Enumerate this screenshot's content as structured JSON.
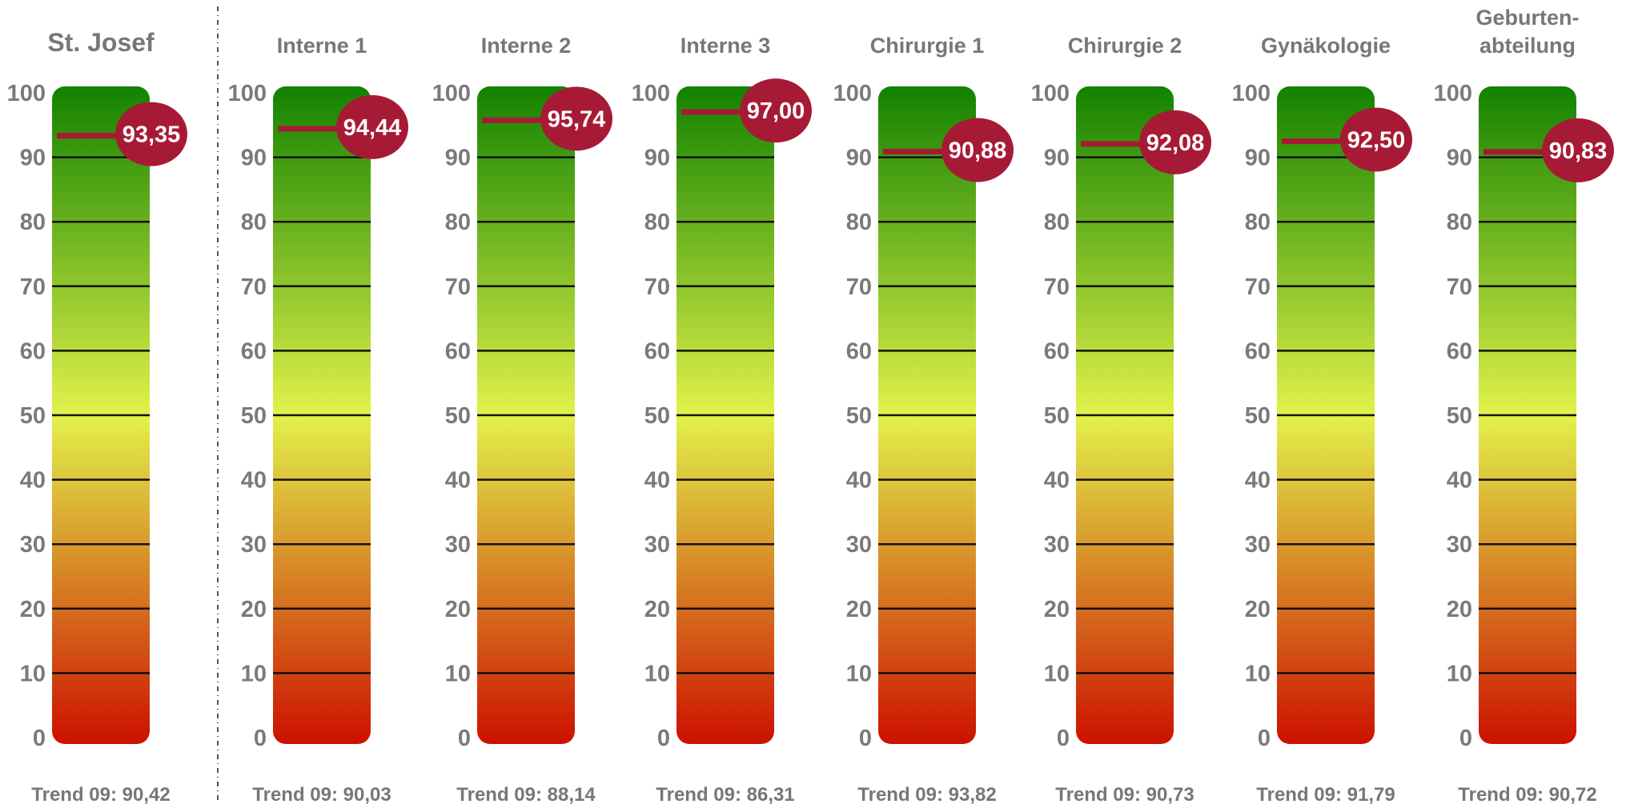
{
  "chart_data": {
    "type": "gauge",
    "scale": {
      "min": 0,
      "max": 100,
      "ticks": [
        0,
        10,
        20,
        30,
        40,
        50,
        60,
        70,
        80,
        90,
        100
      ]
    },
    "gradient_colors": {
      "top": "#128200",
      "middle": "#e2f24a",
      "bottom": "#cc1100"
    },
    "marker_color": "#a71a35",
    "gauges": [
      {
        "title": "St. Josef",
        "value": 93.35,
        "value_label": "93,35",
        "trend_label": "Trend 09: 90,42"
      },
      {
        "title": "Interne 1",
        "value": 94.44,
        "value_label": "94,44",
        "trend_label": "Trend 09: 90,03"
      },
      {
        "title": "Interne 2",
        "value": 95.74,
        "value_label": "95,74",
        "trend_label": "Trend 09: 88,14"
      },
      {
        "title": "Interne 3",
        "value": 97.0,
        "value_label": "97,00",
        "trend_label": "Trend 09: 86,31"
      },
      {
        "title": "Chirurgie 1",
        "value": 90.88,
        "value_label": "90,88",
        "trend_label": "Trend 09: 93,82"
      },
      {
        "title": "Chirurgie 2",
        "value": 92.08,
        "value_label": "92,08",
        "trend_label": "Trend 09: 90,73"
      },
      {
        "title": "Gynäkologie",
        "value": 92.5,
        "value_label": "92,50",
        "trend_label": "Trend 09: 91,79"
      },
      {
        "title": "Geburten-\nabteilung",
        "value": 90.83,
        "value_label": "90,83",
        "trend_label": "Trend 09: 90,72"
      }
    ]
  }
}
